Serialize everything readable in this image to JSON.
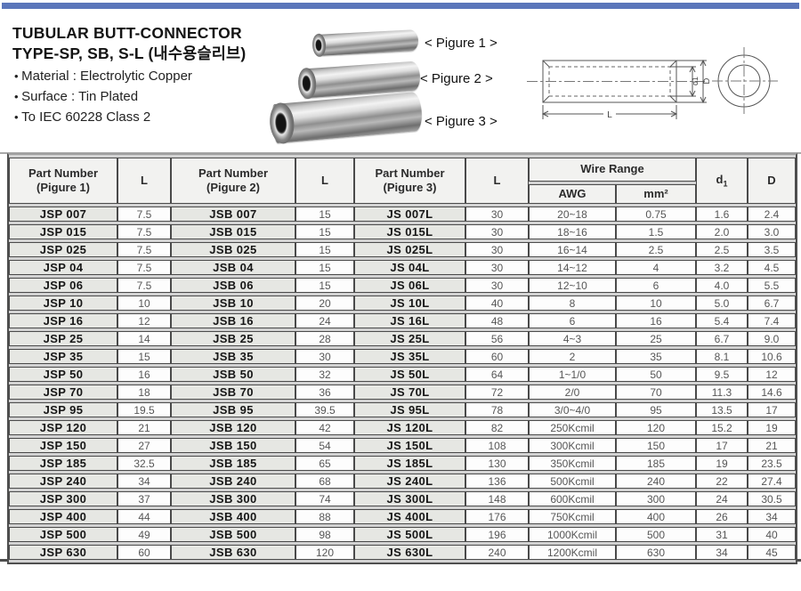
{
  "page": {
    "accent_color": "#5b76ba"
  },
  "header": {
    "title_line1": "TUBULAR BUTT-CONNECTOR",
    "title_line2": "TYPE-SP, SB, S-L (내수용슬리브)",
    "bullets": [
      "Material : Electrolytic Copper",
      "Surface : Tin Plated",
      "To IEC 60228 Class 2"
    ]
  },
  "figures": [
    {
      "label": "< Pigure 1 >"
    },
    {
      "label": "< Pigure 2 >"
    },
    {
      "label": "< Pigure 3 >"
    }
  ],
  "drawing": {
    "d1_label": "d1",
    "D_label": "D",
    "L_label": "L"
  },
  "table": {
    "headers": {
      "part1": {
        "line1": "Part Number",
        "line2": "(Pigure 1)"
      },
      "part2": {
        "line1": "Part Number",
        "line2": "(Pigure 2)"
      },
      "part3": {
        "line1": "Part Number",
        "line2": "(Pigure 3)"
      },
      "length": "L",
      "wire_range": "Wire Range",
      "awg": "AWG",
      "mm2": "mm²",
      "d1_base": "d",
      "d1_sub": "1",
      "outer_d": "D"
    },
    "rows": [
      [
        "JSP 007",
        "7.5",
        "JSB 007",
        "15",
        "JS 007L",
        "30",
        "20~18",
        "0.75",
        "1.6",
        "2.4"
      ],
      [
        "JSP 015",
        "7.5",
        "JSB 015",
        "15",
        "JS 015L",
        "30",
        "18~16",
        "1.5",
        "2.0",
        "3.0"
      ],
      [
        "JSP 025",
        "7.5",
        "JSB 025",
        "15",
        "JS 025L",
        "30",
        "16~14",
        "2.5",
        "2.5",
        "3.5"
      ],
      [
        "JSP 04",
        "7.5",
        "JSB 04",
        "15",
        "JS 04L",
        "30",
        "14~12",
        "4",
        "3.2",
        "4.5"
      ],
      [
        "JSP 06",
        "7.5",
        "JSB 06",
        "15",
        "JS 06L",
        "30",
        "12~10",
        "6",
        "4.0",
        "5.5"
      ],
      [
        "JSP 10",
        "10",
        "JSB 10",
        "20",
        "JS 10L",
        "40",
        "8",
        "10",
        "5.0",
        "6.7"
      ],
      [
        "JSP 16",
        "12",
        "JSB 16",
        "24",
        "JS 16L",
        "48",
        "6",
        "16",
        "5.4",
        "7.4"
      ],
      [
        "JSP 25",
        "14",
        "JSB 25",
        "28",
        "JS 25L",
        "56",
        "4~3",
        "25",
        "6.7",
        "9.0"
      ],
      [
        "JSP 35",
        "15",
        "JSB 35",
        "30",
        "JS 35L",
        "60",
        "2",
        "35",
        "8.1",
        "10.6"
      ],
      [
        "JSP 50",
        "16",
        "JSB 50",
        "32",
        "JS 50L",
        "64",
        "1~1/0",
        "50",
        "9.5",
        "12"
      ],
      [
        "JSP 70",
        "18",
        "JSB 70",
        "36",
        "JS 70L",
        "72",
        "2/0",
        "70",
        "11.3",
        "14.6"
      ],
      [
        "JSP 95",
        "19.5",
        "JSB 95",
        "39.5",
        "JS 95L",
        "78",
        "3/0~4/0",
        "95",
        "13.5",
        "17"
      ],
      [
        "JSP 120",
        "21",
        "JSB 120",
        "42",
        "JS 120L",
        "82",
        "250Kcmil",
        "120",
        "15.2",
        "19"
      ],
      [
        "JSP 150",
        "27",
        "JSB 150",
        "54",
        "JS 150L",
        "108",
        "300Kcmil",
        "150",
        "17",
        "21"
      ],
      [
        "JSP 185",
        "32.5",
        "JSB 185",
        "65",
        "JS 185L",
        "130",
        "350Kcmil",
        "185",
        "19",
        "23.5"
      ],
      [
        "JSP 240",
        "34",
        "JSB 240",
        "68",
        "JS 240L",
        "136",
        "500Kcmil",
        "240",
        "22",
        "27.4"
      ],
      [
        "JSP 300",
        "37",
        "JSB 300",
        "74",
        "JS 300L",
        "148",
        "600Kcmil",
        "300",
        "24",
        "30.5"
      ],
      [
        "JSP 400",
        "44",
        "JSB 400",
        "88",
        "JS 400L",
        "176",
        "750Kcmil",
        "400",
        "26",
        "34"
      ],
      [
        "JSP 500",
        "49",
        "JSB 500",
        "98",
        "JS 500L",
        "196",
        "1000Kcmil",
        "500",
        "31",
        "40"
      ],
      [
        "JSP 630",
        "60",
        "JSB 630",
        "120",
        "JS 630L",
        "240",
        "1200Kcmil",
        "630",
        "34",
        "45"
      ]
    ]
  }
}
